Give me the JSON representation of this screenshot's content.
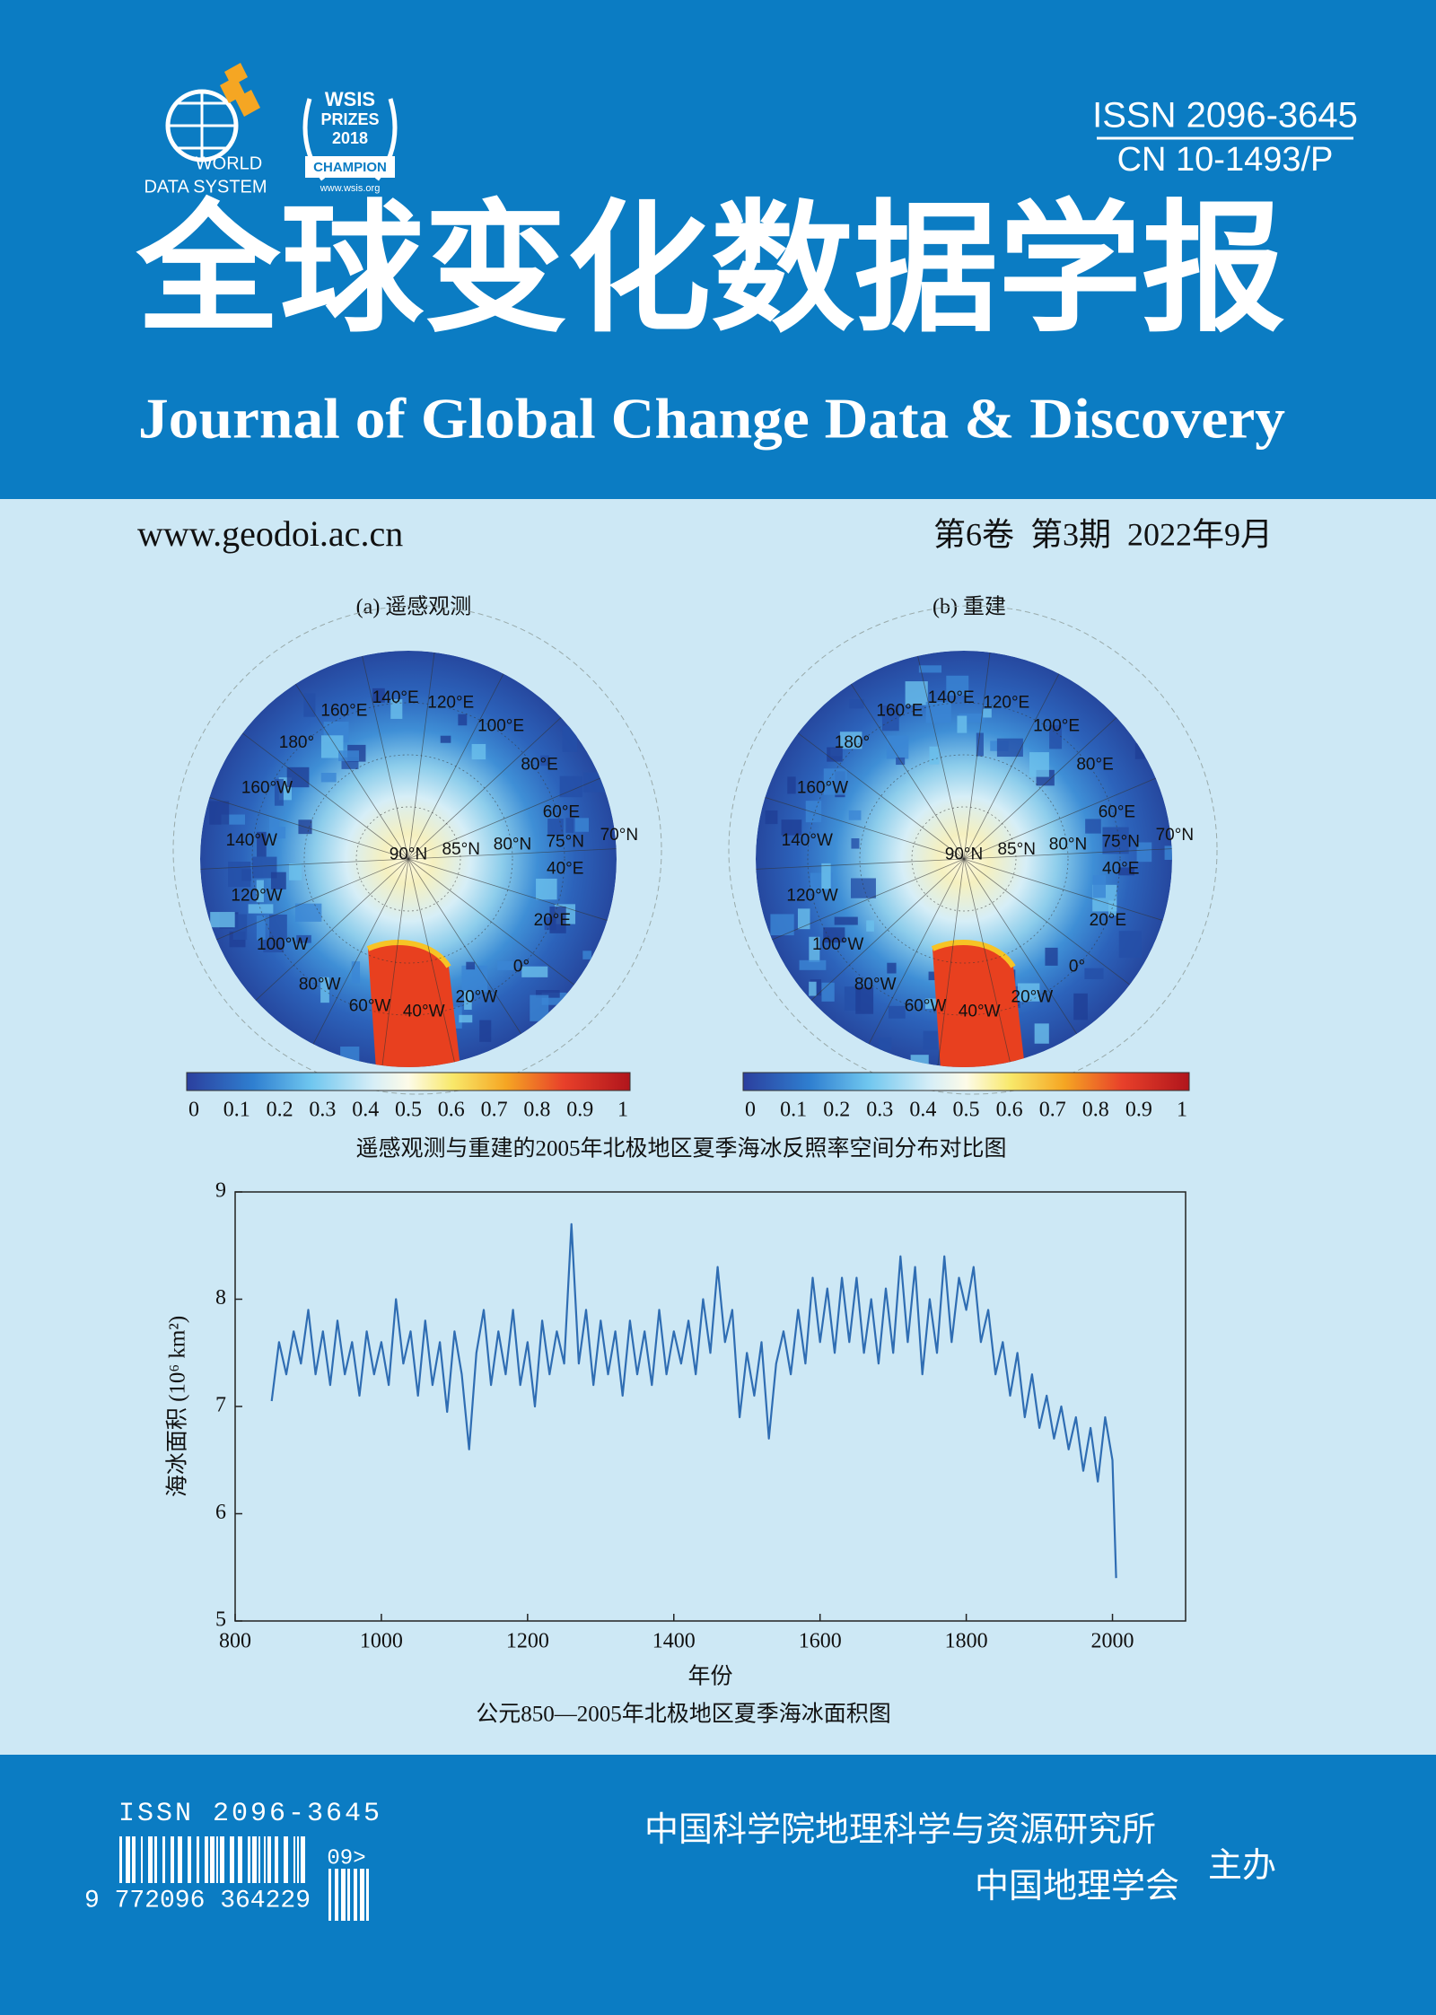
{
  "header": {
    "wds_logo": [
      "WORLD",
      "DATA SYSTEM"
    ],
    "wsis_logo": [
      "WSIS",
      "PRIZES",
      "2018",
      "CHAMPION",
      "www.wsis.org"
    ],
    "issn": "ISSN 2096-3645",
    "cn": "CN 10-1493/P",
    "title_zh": "全球变化数据学报",
    "title_en": "Journal of Global Change Data & Discovery"
  },
  "info": {
    "website": "www.geodoi.ac.cn",
    "issue": "第6卷  第3期  2022年9月"
  },
  "maps": {
    "panels": [
      {
        "title": "(a) 遥感观测"
      },
      {
        "title": "(b) 重建"
      }
    ],
    "labels": [
      "160°E",
      "140°E",
      "120°E",
      "100°E",
      "180°",
      "80°E",
      "160°W",
      "60°E",
      "140°W",
      "90°N",
      "85°N",
      "80°N",
      "75°N",
      "70°N",
      "40°E",
      "120°W",
      "20°E",
      "100°W",
      "0°",
      "80°W",
      "20°W",
      "60°W",
      "40°W"
    ],
    "colorbar_ticks": [
      0,
      0.1,
      0.2,
      0.3,
      0.4,
      0.5,
      0.6,
      0.7,
      0.8,
      0.9,
      1
    ],
    "caption": "遥感观测与重建的2005年北极地区夏季海冰反照率空间分布对比图"
  },
  "chart_data": {
    "type": "line",
    "ylabel": "海冰面积 (10⁶ km²)",
    "xlabel": "年份",
    "caption": "公元850—2005年北极地区夏季海冰面积图",
    "color": "#2f6db3",
    "xlim": [
      800,
      2100
    ],
    "ylim": [
      5,
      9
    ],
    "xticks": [
      800,
      1000,
      1200,
      1400,
      1600,
      1800,
      2000
    ],
    "yticks": [
      5,
      6,
      7,
      8,
      9
    ],
    "x": [
      850,
      860,
      870,
      880,
      890,
      900,
      910,
      920,
      930,
      940,
      950,
      960,
      970,
      980,
      990,
      1000,
      1010,
      1020,
      1030,
      1040,
      1050,
      1060,
      1070,
      1080,
      1090,
      1100,
      1110,
      1120,
      1130,
      1140,
      1150,
      1160,
      1170,
      1180,
      1190,
      1200,
      1210,
      1220,
      1230,
      1240,
      1250,
      1260,
      1270,
      1280,
      1290,
      1300,
      1310,
      1320,
      1330,
      1340,
      1350,
      1360,
      1370,
      1380,
      1390,
      1400,
      1410,
      1420,
      1430,
      1440,
      1450,
      1460,
      1470,
      1480,
      1490,
      1500,
      1510,
      1520,
      1530,
      1540,
      1550,
      1560,
      1570,
      1580,
      1590,
      1600,
      1610,
      1620,
      1630,
      1640,
      1650,
      1660,
      1670,
      1680,
      1690,
      1700,
      1710,
      1720,
      1730,
      1740,
      1750,
      1760,
      1770,
      1780,
      1790,
      1800,
      1810,
      1820,
      1830,
      1840,
      1850,
      1860,
      1870,
      1880,
      1890,
      1900,
      1910,
      1920,
      1930,
      1940,
      1950,
      1960,
      1970,
      1980,
      1990,
      2000,
      2005
    ],
    "values": [
      7.05,
      7.6,
      7.3,
      7.7,
      7.4,
      7.9,
      7.3,
      7.7,
      7.2,
      7.8,
      7.3,
      7.6,
      7.1,
      7.7,
      7.3,
      7.6,
      7.2,
      8.0,
      7.4,
      7.7,
      7.1,
      7.8,
      7.2,
      7.6,
      6.95,
      7.7,
      7.3,
      6.6,
      7.5,
      7.9,
      7.2,
      7.7,
      7.3,
      7.9,
      7.2,
      7.6,
      7.0,
      7.8,
      7.3,
      7.7,
      7.4,
      8.7,
      7.4,
      7.9,
      7.2,
      7.8,
      7.3,
      7.7,
      7.1,
      7.8,
      7.3,
      7.7,
      7.2,
      7.9,
      7.3,
      7.7,
      7.4,
      7.8,
      7.3,
      8.0,
      7.5,
      8.3,
      7.6,
      7.9,
      6.9,
      7.5,
      7.1,
      7.6,
      6.7,
      7.4,
      7.7,
      7.3,
      7.9,
      7.4,
      8.2,
      7.6,
      8.1,
      7.5,
      8.2,
      7.6,
      8.2,
      7.5,
      8.0,
      7.4,
      8.1,
      7.5,
      8.4,
      7.6,
      8.3,
      7.3,
      8.0,
      7.5,
      8.4,
      7.6,
      8.2,
      7.9,
      8.3,
      7.6,
      7.9,
      7.3,
      7.6,
      7.1,
      7.5,
      6.9,
      7.3,
      6.8,
      7.1,
      6.7,
      7.0,
      6.6,
      6.9,
      6.4,
      6.8,
      6.3,
      6.9,
      6.5,
      5.4
    ]
  },
  "footer": {
    "issn": "ISSN 2096-3645",
    "barcode_number": "9 772096 364229",
    "barcode_addon": "09>",
    "org1": "中国科学院地理科学与资源研究所",
    "org2": "中国地理学会",
    "role": "主办"
  }
}
